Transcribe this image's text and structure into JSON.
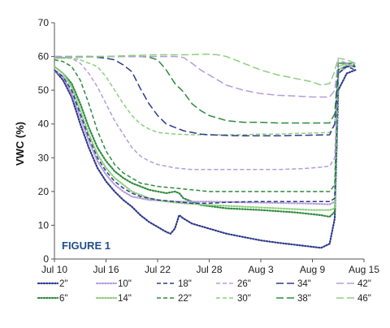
{
  "chart_data": {
    "type": "line",
    "title": "",
    "annotation": "FIGURE 1",
    "xlabel": "",
    "ylabel": "VWC (%)",
    "x_tick_labels": [
      "Jul 10",
      "Jul 16",
      "Jul 22",
      "Jul 28",
      "Aug 3",
      "Aug 9",
      "Aug 15"
    ],
    "xlim": [
      0,
      36
    ],
    "ylim": [
      0,
      70
    ],
    "y_ticks": [
      0,
      10,
      20,
      30,
      40,
      50,
      60,
      70
    ],
    "grid": false,
    "legend_position": "bottom",
    "series": [
      {
        "name": "2\"",
        "color": "#2e3a8c",
        "dash": "dot",
        "points": [
          [
            0,
            56
          ],
          [
            1,
            53
          ],
          [
            2,
            48
          ],
          [
            3,
            40
          ],
          [
            4,
            33
          ],
          [
            5,
            27
          ],
          [
            6,
            23
          ],
          [
            7,
            20
          ],
          [
            8,
            17.5
          ],
          [
            9,
            15.5
          ],
          [
            10,
            13
          ],
          [
            11,
            11
          ],
          [
            12,
            9.5
          ],
          [
            13,
            8
          ],
          [
            13.5,
            7.5
          ],
          [
            14,
            9
          ],
          [
            14.5,
            13
          ],
          [
            15,
            12
          ],
          [
            16,
            10.5
          ],
          [
            18,
            9
          ],
          [
            20,
            7.5
          ],
          [
            22,
            6.5
          ],
          [
            24,
            5.5
          ],
          [
            26,
            4.8
          ],
          [
            28,
            4.2
          ],
          [
            30,
            3.6
          ],
          [
            31,
            3.3
          ],
          [
            32,
            4.5
          ],
          [
            32.6,
            12
          ],
          [
            33,
            50
          ],
          [
            34,
            55
          ],
          [
            35,
            56
          ]
        ]
      },
      {
        "name": "6\"",
        "color": "#2e8b3e",
        "dash": "dot",
        "points": [
          [
            0,
            57
          ],
          [
            1,
            55
          ],
          [
            2,
            52
          ],
          [
            3,
            46
          ],
          [
            4,
            39
          ],
          [
            5,
            33
          ],
          [
            6,
            29
          ],
          [
            7,
            26
          ],
          [
            8,
            24
          ],
          [
            9,
            22.5
          ],
          [
            11,
            20.5
          ],
          [
            13,
            19.5
          ],
          [
            14,
            20
          ],
          [
            14.5,
            19.5
          ],
          [
            15,
            18
          ],
          [
            17,
            16
          ],
          [
            20,
            15
          ],
          [
            24,
            14.5
          ],
          [
            28,
            13.8
          ],
          [
            31,
            13
          ],
          [
            32,
            12.5
          ],
          [
            32.6,
            14
          ],
          [
            33,
            55
          ],
          [
            34,
            57
          ],
          [
            35,
            57.5
          ]
        ]
      },
      {
        "name": "10\"",
        "color": "#b39ddb",
        "dash": "dot",
        "points": [
          [
            0,
            56
          ],
          [
            1,
            54
          ],
          [
            2,
            49
          ],
          [
            3,
            42
          ],
          [
            4,
            35
          ],
          [
            5,
            29
          ],
          [
            6,
            25
          ],
          [
            7,
            22
          ],
          [
            8,
            20
          ],
          [
            9,
            18.5
          ],
          [
            11,
            17.5
          ],
          [
            14,
            17
          ],
          [
            18,
            17
          ],
          [
            22,
            16.8
          ],
          [
            26,
            16.6
          ],
          [
            30,
            16.4
          ],
          [
            32,
            16.2
          ],
          [
            32.6,
            17
          ],
          [
            33,
            55
          ],
          [
            34,
            57
          ],
          [
            35,
            57
          ]
        ]
      },
      {
        "name": "14\"",
        "color": "#8ccf7e",
        "dash": "dot",
        "points": [
          [
            0,
            57
          ],
          [
            1,
            55
          ],
          [
            2,
            51
          ],
          [
            3,
            44
          ],
          [
            4,
            37
          ],
          [
            5,
            31
          ],
          [
            6,
            27
          ],
          [
            7,
            24
          ],
          [
            8,
            22
          ],
          [
            9,
            20
          ],
          [
            11,
            18
          ],
          [
            13,
            17
          ],
          [
            15,
            16.5
          ],
          [
            18,
            16
          ],
          [
            22,
            15.5
          ],
          [
            26,
            15
          ],
          [
            30,
            14.5
          ],
          [
            32,
            14.5
          ],
          [
            32.6,
            15
          ],
          [
            33,
            56
          ],
          [
            34,
            57.5
          ],
          [
            35,
            57
          ]
        ]
      },
      {
        "name": "18\"",
        "color": "#2e3a8c",
        "dash": "dash",
        "points": [
          [
            0,
            56
          ],
          [
            1,
            54
          ],
          [
            2,
            50
          ],
          [
            3,
            43
          ],
          [
            4,
            36
          ],
          [
            5,
            30
          ],
          [
            6,
            26
          ],
          [
            7,
            23
          ],
          [
            8,
            21
          ],
          [
            9,
            19.5
          ],
          [
            10,
            18.5
          ],
          [
            12,
            17.5
          ],
          [
            14,
            17
          ],
          [
            16,
            16.5
          ],
          [
            18,
            16.5
          ],
          [
            20,
            16.8
          ],
          [
            23,
            17
          ],
          [
            26,
            17
          ],
          [
            29,
            17
          ],
          [
            32,
            17
          ],
          [
            32.6,
            18
          ],
          [
            33,
            55
          ],
          [
            34,
            57
          ],
          [
            35,
            56
          ]
        ]
      },
      {
        "name": "22\"",
        "color": "#2e8b3e",
        "dash": "dash",
        "points": [
          [
            0,
            59
          ],
          [
            1,
            58.5
          ],
          [
            2,
            57
          ],
          [
            3,
            53
          ],
          [
            4,
            46
          ],
          [
            5,
            38
          ],
          [
            6,
            32
          ],
          [
            7,
            28
          ],
          [
            8,
            25.5
          ],
          [
            9,
            24
          ],
          [
            10,
            22.5
          ],
          [
            12,
            21.5
          ],
          [
            14,
            21
          ],
          [
            16,
            20.5
          ],
          [
            18,
            20
          ],
          [
            20,
            20
          ],
          [
            24,
            20
          ],
          [
            28,
            20
          ],
          [
            31,
            20
          ],
          [
            32,
            20
          ],
          [
            32.6,
            22
          ],
          [
            33,
            58
          ],
          [
            34,
            58
          ],
          [
            35,
            57
          ]
        ]
      },
      {
        "name": "26\"",
        "color": "#b39ddb",
        "dash": "dash",
        "points": [
          [
            0,
            60
          ],
          [
            2,
            59.5
          ],
          [
            3,
            58
          ],
          [
            4,
            55
          ],
          [
            5,
            51
          ],
          [
            6,
            46
          ],
          [
            7,
            41
          ],
          [
            8,
            37
          ],
          [
            9,
            33
          ],
          [
            10,
            30.5
          ],
          [
            11,
            29
          ],
          [
            12,
            28
          ],
          [
            14,
            27
          ],
          [
            16,
            26.5
          ],
          [
            18,
            26.5
          ],
          [
            20,
            26.5
          ],
          [
            23,
            26.5
          ],
          [
            26,
            26.5
          ],
          [
            29,
            26.8
          ],
          [
            31,
            27.2
          ],
          [
            32,
            27.5
          ],
          [
            32.6,
            30
          ],
          [
            33,
            57
          ],
          [
            34,
            58
          ],
          [
            35,
            57
          ]
        ]
      },
      {
        "name": "30\"",
        "color": "#8ccf7e",
        "dash": "dash",
        "points": [
          [
            0,
            59.5
          ],
          [
            2,
            59.5
          ],
          [
            3,
            59
          ],
          [
            5,
            57
          ],
          [
            6,
            54
          ],
          [
            7,
            50
          ],
          [
            8,
            46
          ],
          [
            9,
            42.5
          ],
          [
            10,
            40
          ],
          [
            11,
            38.5
          ],
          [
            12,
            37.5
          ],
          [
            14,
            37
          ],
          [
            16,
            36.8
          ],
          [
            18,
            36.8
          ],
          [
            20,
            36.8
          ],
          [
            22,
            36.8
          ],
          [
            24,
            37
          ],
          [
            26,
            37
          ],
          [
            28,
            37.2
          ],
          [
            30,
            37.3
          ],
          [
            32,
            37.5
          ],
          [
            32.6,
            40
          ],
          [
            33,
            57
          ],
          [
            34,
            58
          ],
          [
            35,
            58
          ]
        ]
      },
      {
        "name": "34\"",
        "color": "#2e3a8c",
        "dash": "longdash",
        "points": [
          [
            0,
            60
          ],
          [
            2,
            60
          ],
          [
            4,
            60
          ],
          [
            6,
            59.5
          ],
          [
            7,
            59
          ],
          [
            8,
            57.5
          ],
          [
            9,
            55.5
          ],
          [
            10,
            50.5
          ],
          [
            11,
            46
          ],
          [
            12,
            42.5
          ],
          [
            13,
            40
          ],
          [
            14,
            39
          ],
          [
            15,
            38
          ],
          [
            16,
            37.5
          ],
          [
            17,
            37
          ],
          [
            18,
            36.8
          ],
          [
            20,
            36.6
          ],
          [
            22,
            36.5
          ],
          [
            24,
            36.5
          ],
          [
            26,
            36.5
          ],
          [
            28,
            36.6
          ],
          [
            30,
            36.7
          ],
          [
            32,
            36.8
          ],
          [
            32.6,
            40
          ],
          [
            33,
            56
          ],
          [
            34,
            57
          ],
          [
            35,
            57
          ]
        ]
      },
      {
        "name": "38\"",
        "color": "#2e8b3e",
        "dash": "longdash",
        "points": [
          [
            0,
            59.5
          ],
          [
            4,
            60
          ],
          [
            8,
            60
          ],
          [
            10,
            60
          ],
          [
            11,
            59.8
          ],
          [
            12,
            59
          ],
          [
            13,
            56
          ],
          [
            14,
            52
          ],
          [
            15,
            49.5
          ],
          [
            16,
            46
          ],
          [
            17,
            44
          ],
          [
            18,
            42.5
          ],
          [
            20,
            41
          ],
          [
            22,
            40.5
          ],
          [
            24,
            40.5
          ],
          [
            26,
            40.3
          ],
          [
            28,
            40.3
          ],
          [
            30,
            40.3
          ],
          [
            32,
            40.3
          ],
          [
            32.6,
            43
          ],
          [
            33,
            58
          ],
          [
            34,
            58
          ],
          [
            35,
            58
          ]
        ]
      },
      {
        "name": "42\"",
        "color": "#b39ddb",
        "dash": "longdash",
        "points": [
          [
            0,
            60
          ],
          [
            4,
            60
          ],
          [
            8,
            60
          ],
          [
            12,
            60
          ],
          [
            14,
            60
          ],
          [
            15,
            59.7
          ],
          [
            16,
            58
          ],
          [
            17,
            56
          ],
          [
            18,
            54.5
          ],
          [
            19,
            53
          ],
          [
            20,
            51.5
          ],
          [
            22,
            50
          ],
          [
            24,
            49
          ],
          [
            26,
            48.5
          ],
          [
            28,
            48.3
          ],
          [
            30,
            48
          ],
          [
            31,
            48
          ],
          [
            32,
            48
          ],
          [
            32.6,
            50
          ],
          [
            33,
            59
          ],
          [
            34,
            58
          ],
          [
            35,
            58
          ]
        ]
      },
      {
        "name": "46\"",
        "color": "#8ccf7e",
        "dash": "longdash",
        "points": [
          [
            0,
            59.5
          ],
          [
            4,
            59.8
          ],
          [
            8,
            60.2
          ],
          [
            12,
            60.5
          ],
          [
            15,
            60.5
          ],
          [
            18,
            60.7
          ],
          [
            19,
            60.5
          ],
          [
            20,
            60
          ],
          [
            21,
            59
          ],
          [
            22,
            58
          ],
          [
            24,
            56
          ],
          [
            26,
            54.5
          ],
          [
            28,
            53.5
          ],
          [
            30,
            52.5
          ],
          [
            31,
            51.5
          ],
          [
            32,
            52
          ],
          [
            32.5,
            55
          ],
          [
            33,
            59.5
          ],
          [
            34,
            59
          ],
          [
            35,
            58
          ]
        ]
      }
    ]
  }
}
